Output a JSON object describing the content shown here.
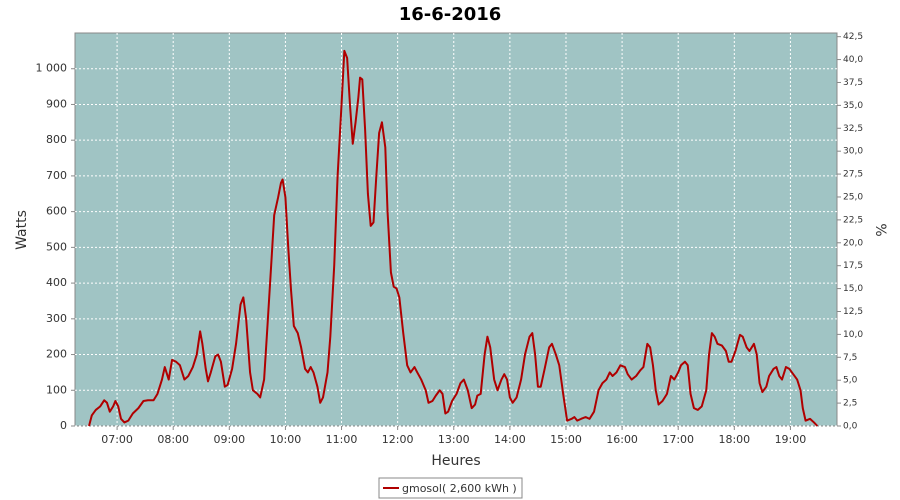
{
  "chart_data": {
    "type": "line",
    "title": "16-6-2016",
    "x_label": "Heures",
    "y_label": "Watts",
    "y2_label": "%",
    "x": [
      6.5,
      6.55,
      6.62,
      6.7,
      6.77,
      6.82,
      6.87,
      6.93,
      6.97,
      7.02,
      7.07,
      7.13,
      7.2,
      7.28,
      7.38,
      7.47,
      7.55,
      7.65,
      7.72,
      7.8,
      7.85,
      7.92,
      7.98,
      8.05,
      8.12,
      8.2,
      8.27,
      8.35,
      8.42,
      8.48,
      8.52,
      8.58,
      8.62,
      8.67,
      8.75,
      8.8,
      8.85,
      8.92,
      8.97,
      9.05,
      9.12,
      9.2,
      9.25,
      9.3,
      9.37,
      9.42,
      9.5,
      9.55,
      9.62,
      9.68,
      9.75,
      9.8,
      9.87,
      9.92,
      9.95,
      10.0,
      10.05,
      10.1,
      10.15,
      10.22,
      10.28,
      10.35,
      10.4,
      10.45,
      10.5,
      10.57,
      10.62,
      10.67,
      10.75,
      10.8,
      10.87,
      10.93,
      11.0,
      11.05,
      11.1,
      11.15,
      11.2,
      11.25,
      11.3,
      11.33,
      11.37,
      11.42,
      11.47,
      11.52,
      11.57,
      11.62,
      11.67,
      11.72,
      11.78,
      11.82,
      11.88,
      11.93,
      11.98,
      12.03,
      12.1,
      12.17,
      12.23,
      12.3,
      12.35,
      12.42,
      12.5,
      12.55,
      12.62,
      12.68,
      12.75,
      12.8,
      12.85,
      12.9,
      12.97,
      13.05,
      13.12,
      13.18,
      13.25,
      13.32,
      13.38,
      13.42,
      13.48,
      13.55,
      13.6,
      13.65,
      13.72,
      13.78,
      13.85,
      13.9,
      13.95,
      14.0,
      14.05,
      14.12,
      14.2,
      14.27,
      14.35,
      14.4,
      14.45,
      14.5,
      14.55,
      14.62,
      14.7,
      14.75,
      14.82,
      14.88,
      14.95,
      15.02,
      15.1,
      15.15,
      15.2,
      15.27,
      15.35,
      15.42,
      15.5,
      15.58,
      15.65,
      15.72,
      15.78,
      15.83,
      15.9,
      15.97,
      16.05,
      16.1,
      16.17,
      16.25,
      16.32,
      16.38,
      16.45,
      16.5,
      16.55,
      16.6,
      16.65,
      16.72,
      16.8,
      16.87,
      16.93,
      17.0,
      17.05,
      17.12,
      17.17,
      17.22,
      17.28,
      17.35,
      17.42,
      17.5,
      17.55,
      17.6,
      17.65,
      17.7,
      17.78,
      17.85,
      17.9,
      17.95,
      18.02,
      18.1,
      18.15,
      18.22,
      18.27,
      18.35,
      18.4,
      18.45,
      18.5,
      18.57,
      18.62,
      18.7,
      18.75,
      18.8,
      18.85,
      18.92,
      18.98,
      19.05,
      19.12,
      19.18,
      19.22,
      19.27,
      19.35,
      19.42,
      19.48
    ],
    "series": [
      {
        "name": "gmosol( 2,600 kWh )",
        "color": "#b00000",
        "values": [
          0,
          30,
          45,
          55,
          72,
          65,
          40,
          55,
          70,
          55,
          20,
          10,
          15,
          35,
          50,
          70,
          72,
          72,
          90,
          130,
          165,
          130,
          185,
          180,
          170,
          130,
          140,
          165,
          200,
          265,
          230,
          160,
          125,
          150,
          195,
          200,
          180,
          110,
          115,
          160,
          230,
          340,
          360,
          300,
          150,
          100,
          90,
          80,
          130,
          280,
          460,
          590,
          640,
          680,
          690,
          640,
          500,
          380,
          280,
          260,
          220,
          160,
          150,
          165,
          150,
          110,
          65,
          80,
          150,
          250,
          450,
          700,
          900,
          1050,
          1030,
          900,
          790,
          850,
          920,
          975,
          970,
          830,
          650,
          560,
          570,
          700,
          820,
          850,
          780,
          600,
          430,
          390,
          385,
          360,
          260,
          170,
          150,
          165,
          150,
          130,
          100,
          65,
          70,
          85,
          100,
          90,
          35,
          40,
          70,
          90,
          120,
          130,
          100,
          50,
          60,
          85,
          90,
          200,
          250,
          220,
          130,
          100,
          130,
          145,
          130,
          80,
          65,
          80,
          130,
          200,
          250,
          260,
          200,
          110,
          110,
          160,
          220,
          230,
          200,
          170,
          90,
          15,
          20,
          25,
          15,
          20,
          25,
          20,
          40,
          100,
          120,
          130,
          150,
          140,
          150,
          170,
          165,
          145,
          130,
          140,
          155,
          165,
          230,
          220,
          170,
          100,
          60,
          70,
          90,
          140,
          130,
          150,
          170,
          180,
          170,
          90,
          50,
          45,
          55,
          100,
          200,
          260,
          250,
          230,
          225,
          210,
          180,
          180,
          210,
          255,
          250,
          220,
          210,
          230,
          200,
          120,
          95,
          110,
          140,
          160,
          165,
          140,
          130,
          165,
          160,
          145,
          130,
          100,
          50,
          15,
          20,
          10,
          0
        ]
      }
    ],
    "xlim": [
      6.25,
      19.83
    ],
    "xticks": [
      {
        "value": 7,
        "label": "07:00"
      },
      {
        "value": 8,
        "label": "08:00"
      },
      {
        "value": 9,
        "label": "09:00"
      },
      {
        "value": 10,
        "label": "10:00"
      },
      {
        "value": 11,
        "label": "11:00"
      },
      {
        "value": 12,
        "label": "12:00"
      },
      {
        "value": 13,
        "label": "13:00"
      },
      {
        "value": 14,
        "label": "14:00"
      },
      {
        "value": 15,
        "label": "15:00"
      },
      {
        "value": 16,
        "label": "16:00"
      },
      {
        "value": 17,
        "label": "17:00"
      },
      {
        "value": 18,
        "label": "18:00"
      },
      {
        "value": 19,
        "label": "19:00"
      }
    ],
    "ylim": [
      0,
      1100
    ],
    "yticks": [
      0,
      100,
      200,
      300,
      400,
      500,
      600,
      700,
      800,
      900,
      {
        "value": 1000,
        "label": "1 000"
      }
    ],
    "y2lim": [
      0,
      42.9
    ],
    "y2ticks": [
      {
        "value": 0,
        "label": "0,0"
      },
      {
        "value": 2.5,
        "label": "2,5"
      },
      {
        "value": 5,
        "label": "5,0"
      },
      {
        "value": 7.5,
        "label": "7,5"
      },
      {
        "value": 10,
        "label": "10,0"
      },
      {
        "value": 12.5,
        "label": "12,5"
      },
      {
        "value": 15,
        "label": "15,0"
      },
      {
        "value": 17.5,
        "label": "17,5"
      },
      {
        "value": 20,
        "label": "20,0"
      },
      {
        "value": 22.5,
        "label": "22,5"
      },
      {
        "value": 25,
        "label": "25,0"
      },
      {
        "value": 27.5,
        "label": "27,5"
      },
      {
        "value": 30,
        "label": "30,0"
      },
      {
        "value": 32.5,
        "label": "32,5"
      },
      {
        "value": 35,
        "label": "35,0"
      },
      {
        "value": 37.5,
        "label": "37,5"
      },
      {
        "value": 40,
        "label": "40,0"
      },
      {
        "value": 42.5,
        "label": "42,5"
      }
    ],
    "grid": true,
    "plot_background": "#a0c4c4",
    "legend": "bottom"
  }
}
